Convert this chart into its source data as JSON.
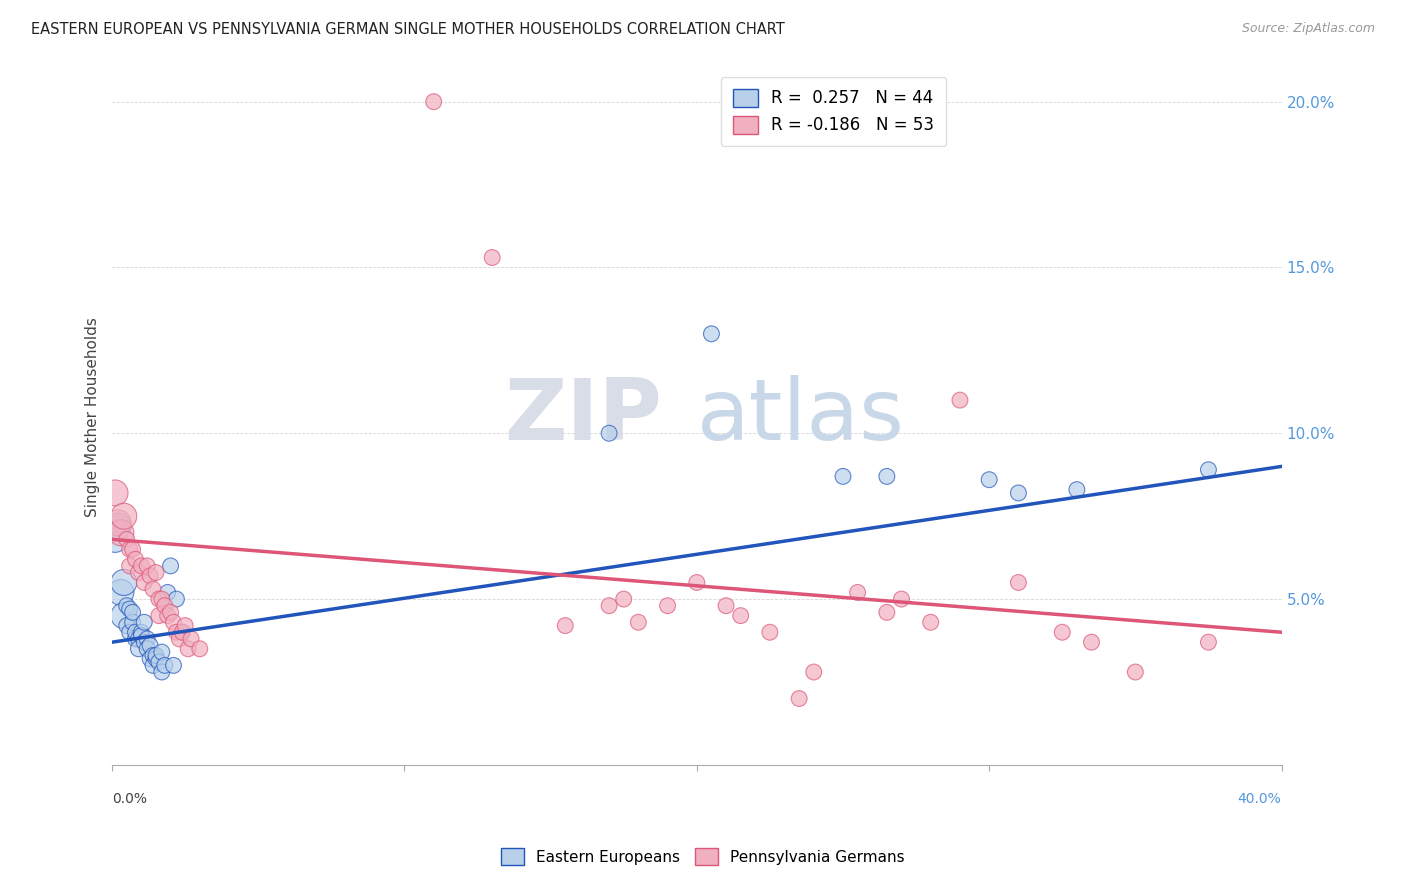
{
  "title": "EASTERN EUROPEAN VS PENNSYLVANIA GERMAN SINGLE MOTHER HOUSEHOLDS CORRELATION CHART",
  "source": "Source: ZipAtlas.com",
  "ylabel": "Single Mother Households",
  "blue_R": 0.257,
  "blue_N": 44,
  "pink_R": -0.186,
  "pink_N": 53,
  "blue_color": "#b8d0ea",
  "pink_color": "#f0b0c0",
  "blue_line_color": "#2255bb",
  "pink_line_color": "#dd5577",
  "watermark_zip": "ZIP",
  "watermark_atlas": "atlas",
  "xlim": [
    0.0,
    0.4
  ],
  "ylim": [
    0.0,
    0.21
  ],
  "blue_points": [
    [
      0.001,
      0.068
    ],
    [
      0.002,
      0.072
    ],
    [
      0.003,
      0.052
    ],
    [
      0.004,
      0.055
    ],
    [
      0.004,
      0.045
    ],
    [
      0.005,
      0.042
    ],
    [
      0.005,
      0.048
    ],
    [
      0.006,
      0.047
    ],
    [
      0.006,
      0.04
    ],
    [
      0.007,
      0.043
    ],
    [
      0.007,
      0.046
    ],
    [
      0.008,
      0.038
    ],
    [
      0.008,
      0.04
    ],
    [
      0.009,
      0.038
    ],
    [
      0.009,
      0.035
    ],
    [
      0.01,
      0.04
    ],
    [
      0.01,
      0.039
    ],
    [
      0.011,
      0.037
    ],
    [
      0.011,
      0.043
    ],
    [
      0.012,
      0.038
    ],
    [
      0.012,
      0.035
    ],
    [
      0.013,
      0.036
    ],
    [
      0.013,
      0.032
    ],
    [
      0.014,
      0.033
    ],
    [
      0.014,
      0.03
    ],
    [
      0.015,
      0.032
    ],
    [
      0.015,
      0.033
    ],
    [
      0.016,
      0.031
    ],
    [
      0.017,
      0.034
    ],
    [
      0.017,
      0.028
    ],
    [
      0.018,
      0.03
    ],
    [
      0.019,
      0.052
    ],
    [
      0.02,
      0.06
    ],
    [
      0.021,
      0.03
    ],
    [
      0.022,
      0.05
    ],
    [
      0.024,
      0.04
    ],
    [
      0.17,
      0.1
    ],
    [
      0.205,
      0.13
    ],
    [
      0.25,
      0.087
    ],
    [
      0.265,
      0.087
    ],
    [
      0.3,
      0.086
    ],
    [
      0.31,
      0.082
    ],
    [
      0.33,
      0.083
    ],
    [
      0.375,
      0.089
    ]
  ],
  "pink_points": [
    [
      0.001,
      0.082
    ],
    [
      0.002,
      0.073
    ],
    [
      0.003,
      0.07
    ],
    [
      0.004,
      0.075
    ],
    [
      0.005,
      0.068
    ],
    [
      0.006,
      0.065
    ],
    [
      0.006,
      0.06
    ],
    [
      0.007,
      0.065
    ],
    [
      0.008,
      0.062
    ],
    [
      0.009,
      0.058
    ],
    [
      0.01,
      0.06
    ],
    [
      0.011,
      0.055
    ],
    [
      0.012,
      0.06
    ],
    [
      0.013,
      0.057
    ],
    [
      0.014,
      0.053
    ],
    [
      0.015,
      0.058
    ],
    [
      0.016,
      0.05
    ],
    [
      0.016,
      0.045
    ],
    [
      0.017,
      0.05
    ],
    [
      0.018,
      0.048
    ],
    [
      0.019,
      0.045
    ],
    [
      0.02,
      0.046
    ],
    [
      0.021,
      0.043
    ],
    [
      0.022,
      0.04
    ],
    [
      0.023,
      0.038
    ],
    [
      0.024,
      0.04
    ],
    [
      0.025,
      0.042
    ],
    [
      0.026,
      0.035
    ],
    [
      0.027,
      0.038
    ],
    [
      0.03,
      0.035
    ],
    [
      0.11,
      0.2
    ],
    [
      0.13,
      0.153
    ],
    [
      0.155,
      0.042
    ],
    [
      0.17,
      0.048
    ],
    [
      0.175,
      0.05
    ],
    [
      0.18,
      0.043
    ],
    [
      0.19,
      0.048
    ],
    [
      0.2,
      0.055
    ],
    [
      0.21,
      0.048
    ],
    [
      0.215,
      0.045
    ],
    [
      0.225,
      0.04
    ],
    [
      0.235,
      0.02
    ],
    [
      0.24,
      0.028
    ],
    [
      0.255,
      0.052
    ],
    [
      0.265,
      0.046
    ],
    [
      0.27,
      0.05
    ],
    [
      0.28,
      0.043
    ],
    [
      0.29,
      0.11
    ],
    [
      0.31,
      0.055
    ],
    [
      0.325,
      0.04
    ],
    [
      0.335,
      0.037
    ],
    [
      0.35,
      0.028
    ],
    [
      0.375,
      0.037
    ]
  ],
  "blue_trend": [
    0.037,
    0.09
  ],
  "pink_trend": [
    0.068,
    0.04
  ]
}
